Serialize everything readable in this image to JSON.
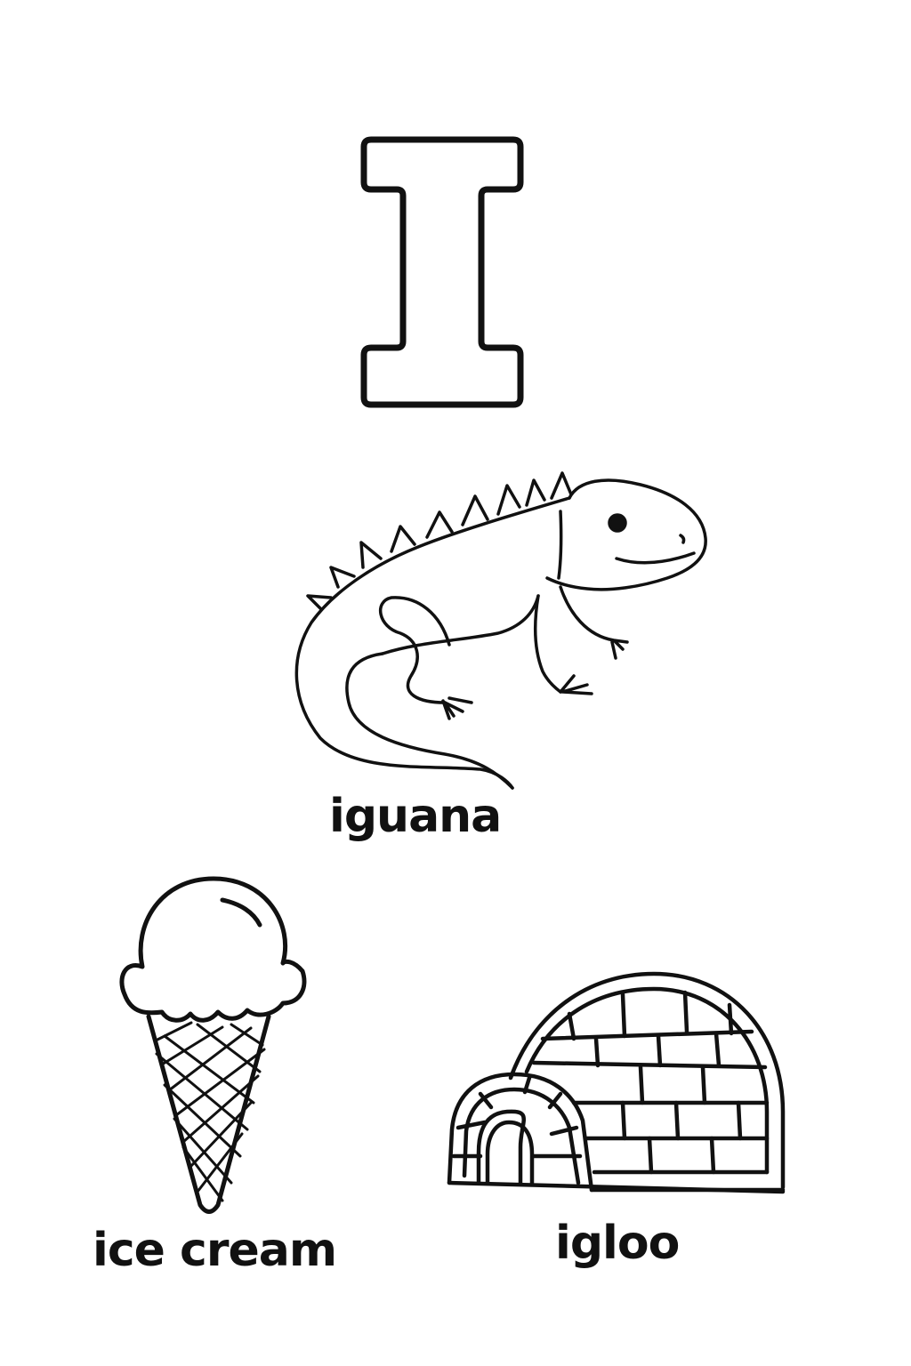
{
  "letter": "I",
  "items": [
    {
      "word": "iguana",
      "icon": "iguana-icon"
    },
    {
      "word": "ice cream",
      "icon": "ice-cream-icon"
    },
    {
      "word": "igloo",
      "icon": "igloo-icon"
    }
  ],
  "colors": {
    "ink": "#111111",
    "paper": "#ffffff"
  }
}
